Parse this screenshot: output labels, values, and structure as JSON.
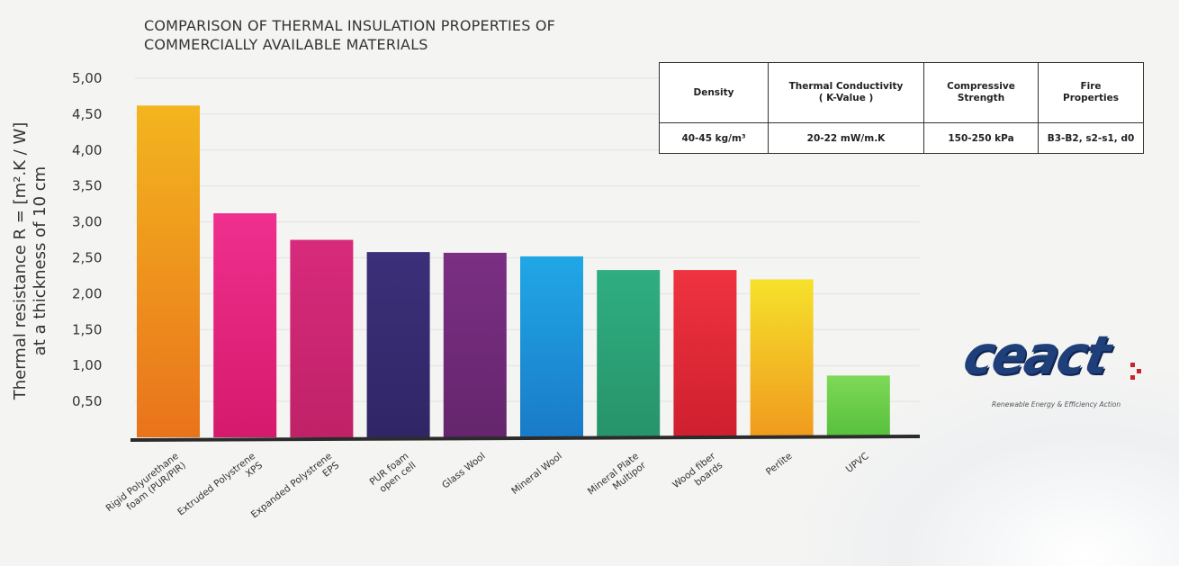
{
  "chart_data": {
    "type": "bar",
    "title": [
      "COMPARISON OF THERMAL INSULATION PROPERTIES OF",
      "COMMERCIALLY AVAILABLE MATERIALS"
    ],
    "ylabel": [
      "Thermal resistance R = [m².K / W]",
      "at a thickness of 10 cm"
    ],
    "xlabel": "",
    "ylim": [
      0,
      5
    ],
    "yticks": [
      "5,00",
      "4,50",
      "4,00",
      "3,50",
      "3,00",
      "2,50",
      "2,00",
      "1,50",
      "1,00",
      "0,50"
    ],
    "ytick_values": [
      5.0,
      4.5,
      4.0,
      3.5,
      3.0,
      2.5,
      2.0,
      1.5,
      1.0,
      0.5
    ],
    "grid": true,
    "categories": [
      [
        "Rigid Polyurethane",
        "foam (PUR/PIR)"
      ],
      [
        "Extruded Polystrene",
        "XPS"
      ],
      [
        "Expanded Polystrene",
        "EPS"
      ],
      [
        "PUR foam",
        "open cell"
      ],
      [
        "Glass Wool"
      ],
      [
        "Mineral Wool"
      ],
      [
        "Mineral Plate",
        "Multipor"
      ],
      [
        "Wood fiber",
        "boards"
      ],
      [
        "Perlite"
      ],
      [
        "UPVC"
      ]
    ],
    "values": [
      4.62,
      3.12,
      2.75,
      2.58,
      2.57,
      2.52,
      2.33,
      2.33,
      2.2,
      0.86
    ],
    "colors": [
      [
        "#f3b51e",
        "#e9731c"
      ],
      [
        "#f02f8e",
        "#d51a6c"
      ],
      [
        "#d82a7c",
        "#bf2267"
      ],
      [
        "#3c2f7a",
        "#302666"
      ],
      [
        "#7a2f83",
        "#65256d"
      ],
      [
        "#20a7e6",
        "#1a7bc8"
      ],
      [
        "#2fae82",
        "#27936a"
      ],
      [
        "#ef3340",
        "#cf1f2f"
      ],
      [
        "#f6e12b",
        "#f09a1e"
      ],
      [
        "#7ed957",
        "#56c03c"
      ]
    ]
  },
  "properties_table": {
    "headers": [
      [
        "Density"
      ],
      [
        "Thermal Conductivity",
        "( K-Value )"
      ],
      [
        "Compressive",
        "Strength"
      ],
      [
        "Fire",
        "Properties"
      ]
    ],
    "values": [
      "40-45 kg/m³",
      "20-22 mW/m.K",
      "150-250 kPa",
      "B3-B2, s2-s1, d0"
    ]
  },
  "logo": {
    "text": "ceact",
    "tagline": "Renewable Energy & Efficiency Action"
  }
}
